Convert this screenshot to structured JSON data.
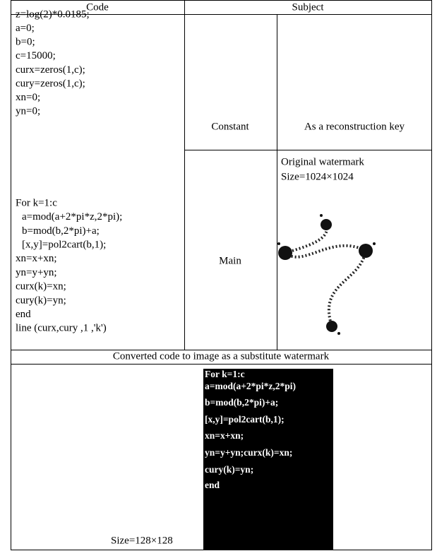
{
  "table": {
    "header": [
      "Code",
      "Subject"
    ],
    "code": [
      "z=log(2)*0.0185;",
      "a=0;",
      "b=0;",
      "c=15000;",
      "curx=zeros(1,c);",
      "cury=zeros(1,c);",
      "xn=0;",
      "yn=0;",
      "For k=1:c",
      "a=mod(a+2*pi*z,2*pi);",
      "b=mod(b,2*pi)+a;",
      "[x,y]=pol2cart(b,1);",
      "xn=x+xn;",
      "yn=y+yn;",
      "curx(k)=xn;",
      "cury(k)=yn;",
      "end",
      "line (curx,cury ,1 ,'k')"
    ],
    "rows": [
      {
        "subject": "Constant",
        "description": [
          "As a reconstruction key"
        ]
      },
      {
        "subject": "Main",
        "description": [
          "Original watermark",
          "Size=1024×1024"
        ]
      }
    ],
    "caption": "Converted code to image as a substitute watermark",
    "image_code": [
      "For k=1:c",
      "a=mod(a+2*pi*z,2*pi)",
      "b=mod(b,2*pi)+a;",
      "[x,y]=pol2cart(b,1);",
      "xn=x+xn;",
      "yn=y+yn;curx(k)=xn;",
      "cury(k)=yn;",
      "end"
    ],
    "image_size": "Size=128×128"
  }
}
